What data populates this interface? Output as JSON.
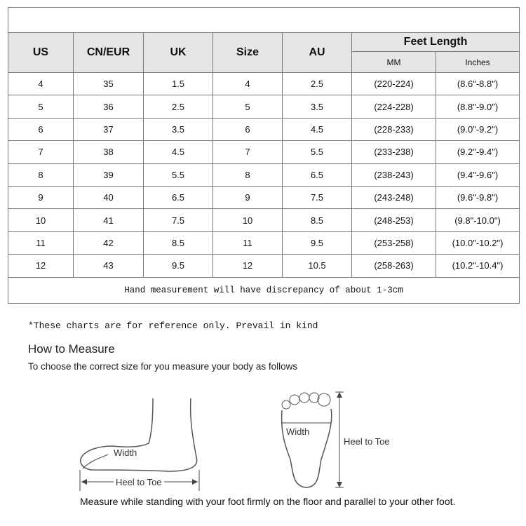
{
  "table": {
    "headers": [
      "US",
      "CN/EUR",
      "UK",
      "Size",
      "AU"
    ],
    "group_header": "Feet Length",
    "sub_headers": [
      "MM",
      "Inches"
    ],
    "rows": [
      [
        "4",
        "35",
        "1.5",
        "4",
        "2.5",
        "(220-224)",
        "(8.6\"-8.8\")"
      ],
      [
        "5",
        "36",
        "2.5",
        "5",
        "3.5",
        "(224-228)",
        "(8.8\"-9.0\")"
      ],
      [
        "6",
        "37",
        "3.5",
        "6",
        "4.5",
        "(228-233)",
        "(9.0\"-9.2\")"
      ],
      [
        "7",
        "38",
        "4.5",
        "7",
        "5.5",
        "(233-238)",
        "(9.2\"-9.4\")"
      ],
      [
        "8",
        "39",
        "5.5",
        "8",
        "6.5",
        "(238-243)",
        "(9.4\"-9.6\")"
      ],
      [
        "9",
        "40",
        "6.5",
        "9",
        "7.5",
        "(243-248)",
        "(9.6\"-9.8\")"
      ],
      [
        "10",
        "41",
        "7.5",
        "10",
        "8.5",
        "(248-253)",
        "(9.8\"-10.0\")"
      ],
      [
        "11",
        "42",
        "8.5",
        "11",
        "9.5",
        "(253-258)",
        "(10.0\"-10.2\")"
      ],
      [
        "12",
        "43",
        "9.5",
        "12",
        "10.5",
        "(258-263)",
        "(10.2\"-10.4\")"
      ]
    ],
    "footer": "Hand measurement will have discrepancy of about 1-3cm"
  },
  "note": "*These charts are for reference only. Prevail in kind",
  "how_to": {
    "title": "How to Measure",
    "subtitle": "To choose the correct size for you measure your body as follows",
    "side_width_label": "Width",
    "side_length_label": "Heel to Toe",
    "top_width_label": "Width",
    "top_length_label": "Heel to Toe",
    "instruction": "Measure while standing with your foot firmly on the floor and parallel to your other foot."
  }
}
